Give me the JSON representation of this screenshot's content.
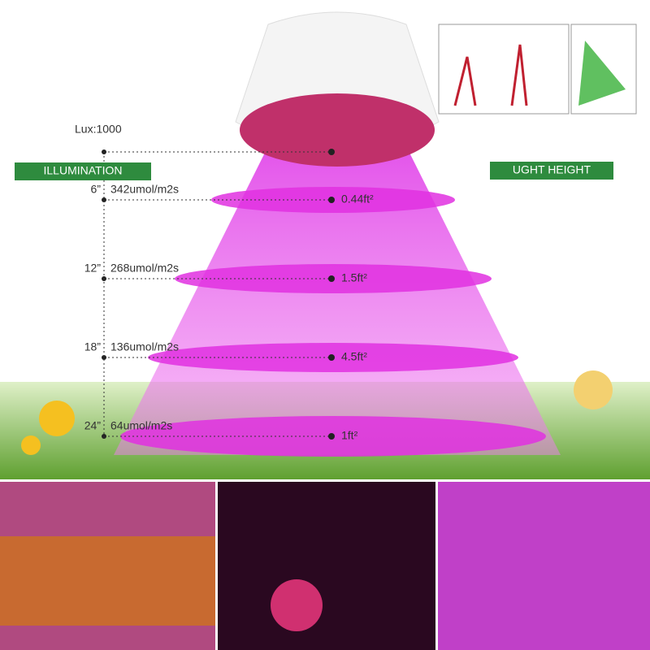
{
  "lux_label": "Lux:1000",
  "illumination_label": "ILLUMINATION",
  "height_label": "UGHT HEIGHT",
  "rows": [
    {
      "height": "6”",
      "ppfd": "342umol/m2s",
      "area": "0.44ft²"
    },
    {
      "height": "12”",
      "ppfd": "268umol/m2s",
      "area": "1.5ft²"
    },
    {
      "height": "18”",
      "ppfd": "136umol/m2s",
      "area": "4.5ft²"
    },
    {
      "height": "24”",
      "ppfd": "64umol/m2s",
      "area": "1ft²"
    }
  ]
}
